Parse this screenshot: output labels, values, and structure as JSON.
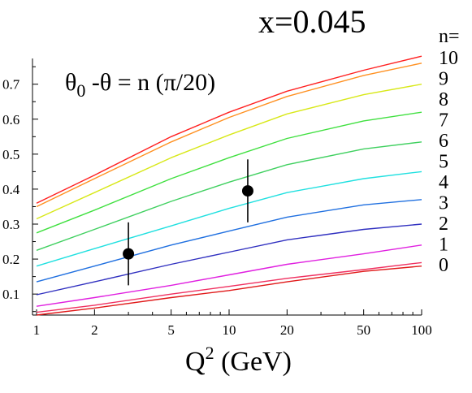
{
  "chart_data": {
    "type": "line",
    "title": "x=0.045",
    "annotation": {
      "theta": "θ",
      "sub0": "0",
      "rest1": " -θ = n (π/20)"
    },
    "xlabel": {
      "base": "Q",
      "sup": "2",
      "rest": " (GeV)"
    },
    "ylabel": "",
    "x_scale": "log",
    "xlim": [
      1,
      100
    ],
    "ylim": [
      0.04,
      0.82
    ],
    "grid": false,
    "x_ticks": [
      {
        "value": 1,
        "label": "1"
      },
      {
        "value": 2,
        "label": "2"
      },
      {
        "value": 5,
        "label": "5"
      },
      {
        "value": 10,
        "label": "10"
      },
      {
        "value": 20,
        "label": "20"
      },
      {
        "value": 50,
        "label": "50"
      },
      {
        "value": 100,
        "label": "100"
      }
    ],
    "x_minor_ticks": [
      3,
      4,
      6,
      7,
      8,
      9,
      30,
      40,
      60,
      70,
      80,
      90
    ],
    "y_ticks": [
      {
        "value": 0.1,
        "label": "0.1"
      },
      {
        "value": 0.2,
        "label": "0.2"
      },
      {
        "value": 0.3,
        "label": "0.3"
      },
      {
        "value": 0.4,
        "label": "0.4"
      },
      {
        "value": 0.5,
        "label": "0.5"
      },
      {
        "value": 0.6,
        "label": "0.6"
      },
      {
        "value": 0.7,
        "label": "0.7"
      }
    ],
    "x": [
      1,
      2,
      5,
      10,
      20,
      50,
      100
    ],
    "legend_header": "n=",
    "series": [
      {
        "name": "10",
        "color": "#ff2020",
        "values": [
          0.36,
          0.44,
          0.55,
          0.62,
          0.68,
          0.74,
          0.78
        ]
      },
      {
        "name": "9",
        "color": "#ff9020",
        "values": [
          0.35,
          0.43,
          0.535,
          0.605,
          0.665,
          0.725,
          0.76
        ]
      },
      {
        "name": "8",
        "color": "#d8e818",
        "values": [
          0.315,
          0.39,
          0.49,
          0.555,
          0.615,
          0.67,
          0.7
        ]
      },
      {
        "name": "7",
        "color": "#40e040",
        "values": [
          0.275,
          0.34,
          0.43,
          0.49,
          0.545,
          0.595,
          0.62
        ]
      },
      {
        "name": "6",
        "color": "#40d060",
        "values": [
          0.225,
          0.285,
          0.365,
          0.42,
          0.47,
          0.515,
          0.535
        ]
      },
      {
        "name": "5",
        "color": "#20e0e0",
        "values": [
          0.18,
          0.23,
          0.295,
          0.345,
          0.39,
          0.43,
          0.45
        ]
      },
      {
        "name": "4",
        "color": "#2070e0",
        "values": [
          0.135,
          0.18,
          0.24,
          0.28,
          0.32,
          0.355,
          0.37
        ]
      },
      {
        "name": "3",
        "color": "#3030c0",
        "values": [
          0.098,
          0.135,
          0.185,
          0.22,
          0.255,
          0.285,
          0.3
        ]
      },
      {
        "name": "2",
        "color": "#e020e0",
        "values": [
          0.065,
          0.09,
          0.125,
          0.155,
          0.185,
          0.215,
          0.24
        ]
      },
      {
        "name": "1",
        "color": "#f03060",
        "values": [
          0.048,
          0.068,
          0.1,
          0.122,
          0.145,
          0.17,
          0.19
        ]
      },
      {
        "name": "0",
        "color": "#e01818",
        "values": [
          0.04,
          0.06,
          0.09,
          0.11,
          0.135,
          0.165,
          0.18
        ]
      }
    ],
    "points": [
      {
        "x": 3.0,
        "y": 0.215,
        "yerr_low": 0.125,
        "yerr_high": 0.305
      },
      {
        "x": 12.5,
        "y": 0.395,
        "yerr_low": 0.305,
        "yerr_high": 0.485
      }
    ]
  }
}
